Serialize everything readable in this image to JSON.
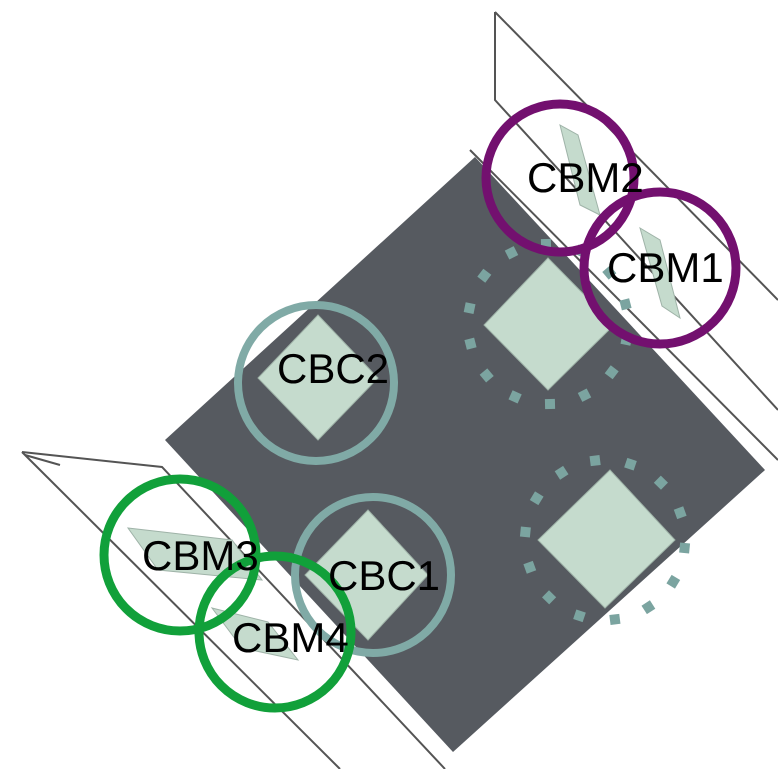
{
  "colors": {
    "background": "#ffffff",
    "body": "#565a60",
    "pad": "#c5dbcd",
    "panel_stroke": "#545454",
    "dots": "#7ba4a0",
    "ring_cbm_top": "#73106f",
    "ring_cbm_bottom": "#11a03a",
    "ring_cbc": "#80aaa6"
  },
  "labels": {
    "cbm1": "CBM1",
    "cbm2": "CBM2",
    "cbm3": "CBM3",
    "cbm4": "CBM4",
    "cbc1": "CBC1",
    "cbc2": "CBC2"
  }
}
